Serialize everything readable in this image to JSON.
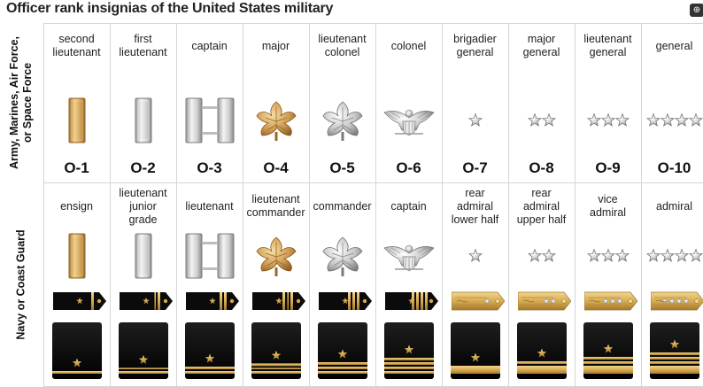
{
  "title": "Officer rank insignias of the United States military",
  "corner_buttons": [
    "⊕",
    "⊕"
  ],
  "sections": {
    "army": "Army, Marines, Air Force, or Space Force",
    "navy": "Navy or Coast Guard"
  },
  "army_ranks": [
    {
      "lines": [
        "second",
        "lieutenant"
      ],
      "insignia": "gold-bar",
      "grade": "O-1"
    },
    {
      "lines": [
        "first",
        "lieutenant"
      ],
      "insignia": "silver-bar",
      "grade": "O-2"
    },
    {
      "lines": [
        "captain"
      ],
      "insignia": "double-silver-bars",
      "grade": "O-3"
    },
    {
      "lines": [
        "major"
      ],
      "insignia": "gold-oak-leaf",
      "grade": "O-4"
    },
    {
      "lines": [
        "lieutenant",
        "colonel"
      ],
      "insignia": "silver-oak-leaf",
      "grade": "O-5"
    },
    {
      "lines": [
        "colonel"
      ],
      "insignia": "silver-eagle",
      "grade": "O-6"
    },
    {
      "lines": [
        "brigadier",
        "general"
      ],
      "insignia": "one-star",
      "grade": "O-7"
    },
    {
      "lines": [
        "major",
        "general"
      ],
      "insignia": "two-stars",
      "grade": "O-8"
    },
    {
      "lines": [
        "lieutenant",
        "general"
      ],
      "insignia": "three-stars",
      "grade": "O-9"
    },
    {
      "lines": [
        "general"
      ],
      "insignia": "four-stars",
      "grade": "O-10"
    }
  ],
  "navy_ranks": [
    {
      "lines": [
        "ensign"
      ],
      "insignia": "gold-bar",
      "shoulder_stripes": "1 stripe",
      "sleeve_stripes": "1 stripe"
    },
    {
      "lines": [
        "lieutenant",
        "junior",
        "grade"
      ],
      "insignia": "silver-bar",
      "shoulder_stripes": "1.5 stripes",
      "sleeve_stripes": "1.5 stripes"
    },
    {
      "lines": [
        "lieutenant"
      ],
      "insignia": "double-silver-bars",
      "shoulder_stripes": "2 stripes",
      "sleeve_stripes": "2 stripes"
    },
    {
      "lines": [
        "lieutenant",
        "commander"
      ],
      "insignia": "gold-oak-leaf",
      "shoulder_stripes": "2.5 stripes",
      "sleeve_stripes": "2.5 stripes"
    },
    {
      "lines": [
        "commander"
      ],
      "insignia": "silver-oak-leaf",
      "shoulder_stripes": "3 stripes",
      "sleeve_stripes": "3 stripes"
    },
    {
      "lines": [
        "captain"
      ],
      "insignia": "silver-eagle",
      "shoulder_stripes": "4 stripes",
      "sleeve_stripes": "4 stripes"
    },
    {
      "lines": [
        "rear",
        "admiral",
        "lower half"
      ],
      "insignia": "one-star",
      "shoulder_stripes": "gold board",
      "sleeve_stripes": "1 wide stripe"
    },
    {
      "lines": [
        "rear",
        "admiral",
        "upper half"
      ],
      "insignia": "two-stars",
      "shoulder_stripes": "gold board",
      "sleeve_stripes": "wide + 1"
    },
    {
      "lines": [
        "vice",
        "admiral"
      ],
      "insignia": "three-stars",
      "shoulder_stripes": "gold board",
      "sleeve_stripes": "wide + 2"
    },
    {
      "lines": [
        "admiral"
      ],
      "insignia": "four-stars",
      "shoulder_stripes": "gold board",
      "sleeve_stripes": "wide + 3"
    }
  ],
  "colors": {
    "gold": "#c9a25a",
    "silver": "#c8c8c8",
    "black": "#0b0b0b",
    "grid": "#d5d5d5"
  }
}
